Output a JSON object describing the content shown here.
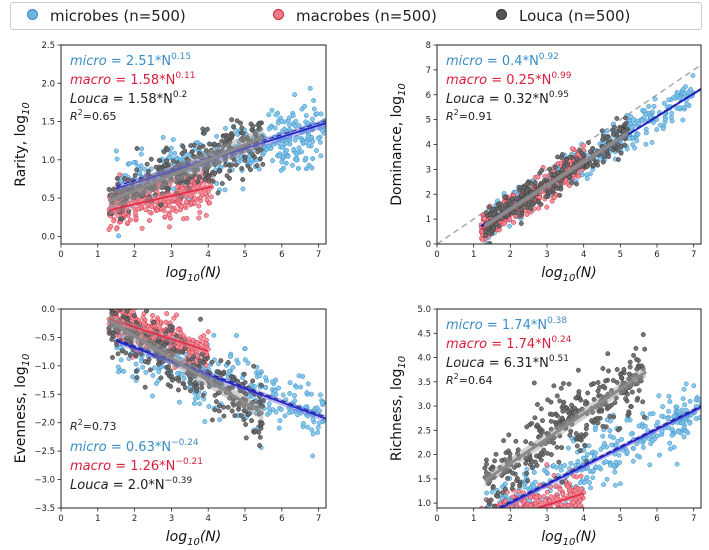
{
  "legend": [
    {
      "label": "microbes (n=500)",
      "color": "#6bb6e0",
      "edge": "#3a88c0"
    },
    {
      "label": "macrobes (n=500)",
      "color": "#f07a86",
      "edge": "#d0243a"
    },
    {
      "label": "Louca (n=500)",
      "color": "#555555",
      "edge": "#333333"
    }
  ],
  "colors": {
    "micro": "#3a8dc7",
    "macro": "#d9203f",
    "louca": "#444444",
    "blue_fit": "#2424cc",
    "gray_fit": "#8a8a8a"
  },
  "chart_data": [
    {
      "id": "rarity",
      "type": "scatter",
      "ylabel": "Rarity, log",
      "ylabel_sub": "10",
      "xlabel": "log",
      "xlabel_sub": "10",
      "xlabel_tail": "(N)",
      "xlim": [
        0,
        7.2
      ],
      "ylim": [
        -0.1,
        2.5
      ],
      "xticks": [
        0,
        1,
        2,
        3,
        4,
        5,
        6,
        7
      ],
      "yticks": [
        0.0,
        0.5,
        1.0,
        1.5,
        2.0,
        2.5
      ],
      "ytick_labels": [
        "0.0",
        "0.5",
        "1.0",
        "1.5",
        "2.0",
        "2.5"
      ],
      "identity_line": false,
      "annotations": {
        "position": "top-left",
        "lines": [
          {
            "group": "micro",
            "name": "micro",
            "eq": " = 2.51*N",
            "exp": "0.15"
          },
          {
            "group": "macro",
            "name": "macro",
            "eq": " = 1.58*N",
            "exp": "0.11"
          },
          {
            "group": "louca",
            "name": "Louca",
            "eq": " = 1.58*N",
            "exp": "0.2"
          },
          {
            "group": "r2",
            "name": "R",
            "eq": "=0.65",
            "exp": "2"
          }
        ]
      },
      "series": [
        {
          "name": "micro",
          "coef": 2.51,
          "exponent": 0.15,
          "x_range": [
            1.5,
            7.2
          ],
          "spread": 0.18,
          "n": 330,
          "extra_cluster": {
            "x": [
              5.8,
              6.9
            ],
            "y_center": 1.1,
            "spread": 0.2,
            "n": 35
          }
        },
        {
          "name": "macro",
          "coef": 1.58,
          "exponent": 0.11,
          "x_range": [
            1.3,
            4.1
          ],
          "spread": 0.14,
          "n": 330
        },
        {
          "name": "louca",
          "coef": 1.58,
          "exponent": 0.2,
          "x_range": [
            1.3,
            5.5
          ],
          "spread": 0.17,
          "n": 330
        }
      ]
    },
    {
      "id": "dominance",
      "type": "scatter",
      "ylabel": "Dominance, log",
      "ylabel_sub": "10",
      "xlabel": "log",
      "xlabel_sub": "10",
      "xlabel_tail": "(N)",
      "xlim": [
        0,
        7.2
      ],
      "ylim": [
        0,
        8
      ],
      "xticks": [
        0,
        1,
        2,
        3,
        4,
        5,
        6,
        7
      ],
      "yticks": [
        0,
        1,
        2,
        3,
        4,
        5,
        6,
        7,
        8
      ],
      "ytick_labels": [
        "0",
        "1",
        "2",
        "3",
        "4",
        "5",
        "6",
        "7",
        "8"
      ],
      "identity_line": true,
      "annotations": {
        "position": "top-left",
        "lines": [
          {
            "group": "micro",
            "name": "micro",
            "eq": " = 0.4*N",
            "exp": "0.92"
          },
          {
            "group": "macro",
            "name": "macro",
            "eq": " = 0.25*N",
            "exp": "0.99"
          },
          {
            "group": "louca",
            "name": "Louca",
            "eq": " = 0.32*N",
            "exp": "0.95"
          },
          {
            "group": "r2",
            "name": "R",
            "eq": "=0.91",
            "exp": "2"
          }
        ]
      },
      "series": [
        {
          "name": "micro",
          "coef": 0.4,
          "exponent": 0.92,
          "x_range": [
            1.2,
            7.0
          ],
          "spread": 0.35,
          "n": 330
        },
        {
          "name": "macro",
          "coef": 0.25,
          "exponent": 0.99,
          "x_range": [
            1.2,
            4.0
          ],
          "spread": 0.3,
          "n": 330
        },
        {
          "name": "louca",
          "coef": 0.32,
          "exponent": 0.95,
          "x_range": [
            1.3,
            5.2
          ],
          "spread": 0.35,
          "n": 330
        }
      ]
    },
    {
      "id": "evenness",
      "type": "scatter",
      "ylabel": "Evenness, log",
      "ylabel_sub": "10",
      "xlabel": "log",
      "xlabel_sub": "10",
      "xlabel_tail": "(N)",
      "xlim": [
        0,
        7.2
      ],
      "ylim": [
        -3.5,
        0.0
      ],
      "xticks": [
        0,
        1,
        2,
        3,
        4,
        5,
        6,
        7
      ],
      "yticks": [
        -3.5,
        -3.0,
        -2.5,
        -2.0,
        -1.5,
        -1.0,
        -0.5,
        0.0
      ],
      "ytick_labels": [
        "−3.5",
        "−3.0",
        "−2.5",
        "−2.0",
        "−1.5",
        "−1.0",
        "−0.5",
        "0.0"
      ],
      "identity_line": false,
      "annotations": {
        "position": "bottom-left",
        "lines": [
          {
            "group": "r2",
            "name": "R",
            "eq": "=0.73",
            "exp": "2"
          },
          {
            "group": "micro",
            "name": "micro",
            "eq": " = 0.63*N",
            "exp": "−0.24"
          },
          {
            "group": "macro",
            "name": "macro",
            "eq": " = 1.26*N",
            "exp": "−0.21"
          },
          {
            "group": "louca",
            "name": "Louca",
            "eq": " = 2.0*N",
            "exp": "−0.39"
          }
        ]
      },
      "series": [
        {
          "name": "micro",
          "coef": 0.63,
          "exponent": -0.24,
          "x_range": [
            1.5,
            7.2
          ],
          "spread": 0.28,
          "n": 330
        },
        {
          "name": "macro",
          "coef": 1.26,
          "exponent": -0.21,
          "x_range": [
            1.3,
            4.0
          ],
          "spread": 0.16,
          "n": 330
        },
        {
          "name": "louca",
          "coef": 2.0,
          "exponent": -0.39,
          "x_range": [
            1.3,
            5.5
          ],
          "spread": 0.28,
          "n": 330
        }
      ]
    },
    {
      "id": "richness",
      "type": "scatter",
      "ylabel": "Richness, log",
      "ylabel_sub": "10",
      "xlabel": "log",
      "xlabel_sub": "10",
      "xlabel_tail": "(N)",
      "xlim": [
        0,
        7.2
      ],
      "ylim": [
        0.9,
        5.0
      ],
      "xticks": [
        0,
        1,
        2,
        3,
        4,
        5,
        6,
        7
      ],
      "yticks": [
        1.0,
        1.5,
        2.0,
        2.5,
        3.0,
        3.5,
        4.0,
        4.5,
        5.0
      ],
      "ytick_labels": [
        "1.0",
        "1.5",
        "2.0",
        "2.5",
        "3.0",
        "3.5",
        "4.0",
        "4.5",
        "5.0"
      ],
      "identity_line": false,
      "annotations": {
        "position": "top-left",
        "lines": [
          {
            "group": "micro",
            "name": "micro",
            "eq": " = 1.74*N",
            "exp": "0.38"
          },
          {
            "group": "macro",
            "name": "macro",
            "eq": " = 1.74*N",
            "exp": "0.24"
          },
          {
            "group": "louca",
            "name": "Louca",
            "eq": " = 6.31*N",
            "exp": "0.51"
          },
          {
            "group": "r2",
            "name": "R",
            "eq": "=0.64",
            "exp": "2"
          }
        ]
      },
      "series": [
        {
          "name": "micro",
          "coef": 1.74,
          "exponent": 0.38,
          "x_range": [
            1.3,
            7.2
          ],
          "spread": 0.3,
          "n": 330,
          "extra_cluster": {
            "x": [
              6.3,
              6.9
            ],
            "y_center": 2.7,
            "spread": 0.12,
            "n": 25
          }
        },
        {
          "name": "macro",
          "coef": 1.74,
          "exponent": 0.24,
          "x_range": [
            1.2,
            4.0
          ],
          "spread": 0.22,
          "n": 330
        },
        {
          "name": "louca",
          "coef": 6.31,
          "exponent": 0.51,
          "x_range": [
            1.3,
            5.7
          ],
          "spread": 0.4,
          "n": 330
        }
      ]
    }
  ]
}
